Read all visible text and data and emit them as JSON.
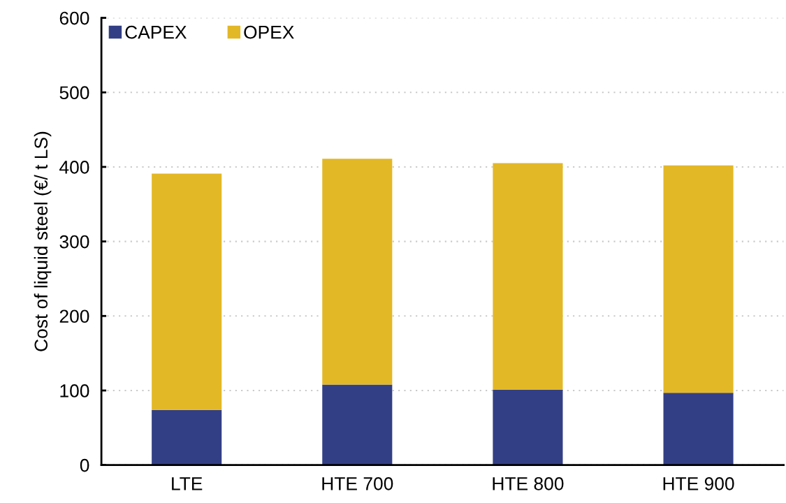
{
  "chart_data": {
    "type": "bar",
    "stacked": true,
    "ylabel": "Cost of liquid steel (€/ t LS)",
    "categories": [
      "LTE",
      "HTE 700",
      "HTE 800",
      "HTE 900"
    ],
    "series": [
      {
        "name": "CAPEX",
        "color": "#333f85",
        "values": [
          74,
          108,
          101,
          97
        ]
      },
      {
        "name": "OPEX",
        "color": "#e3b826",
        "values": [
          317,
          303,
          304,
          305
        ]
      }
    ],
    "ylim": [
      0,
      600
    ],
    "yticks": [
      0,
      100,
      200,
      300,
      400,
      500,
      600
    ],
    "grid": "y",
    "legend": "top left"
  }
}
